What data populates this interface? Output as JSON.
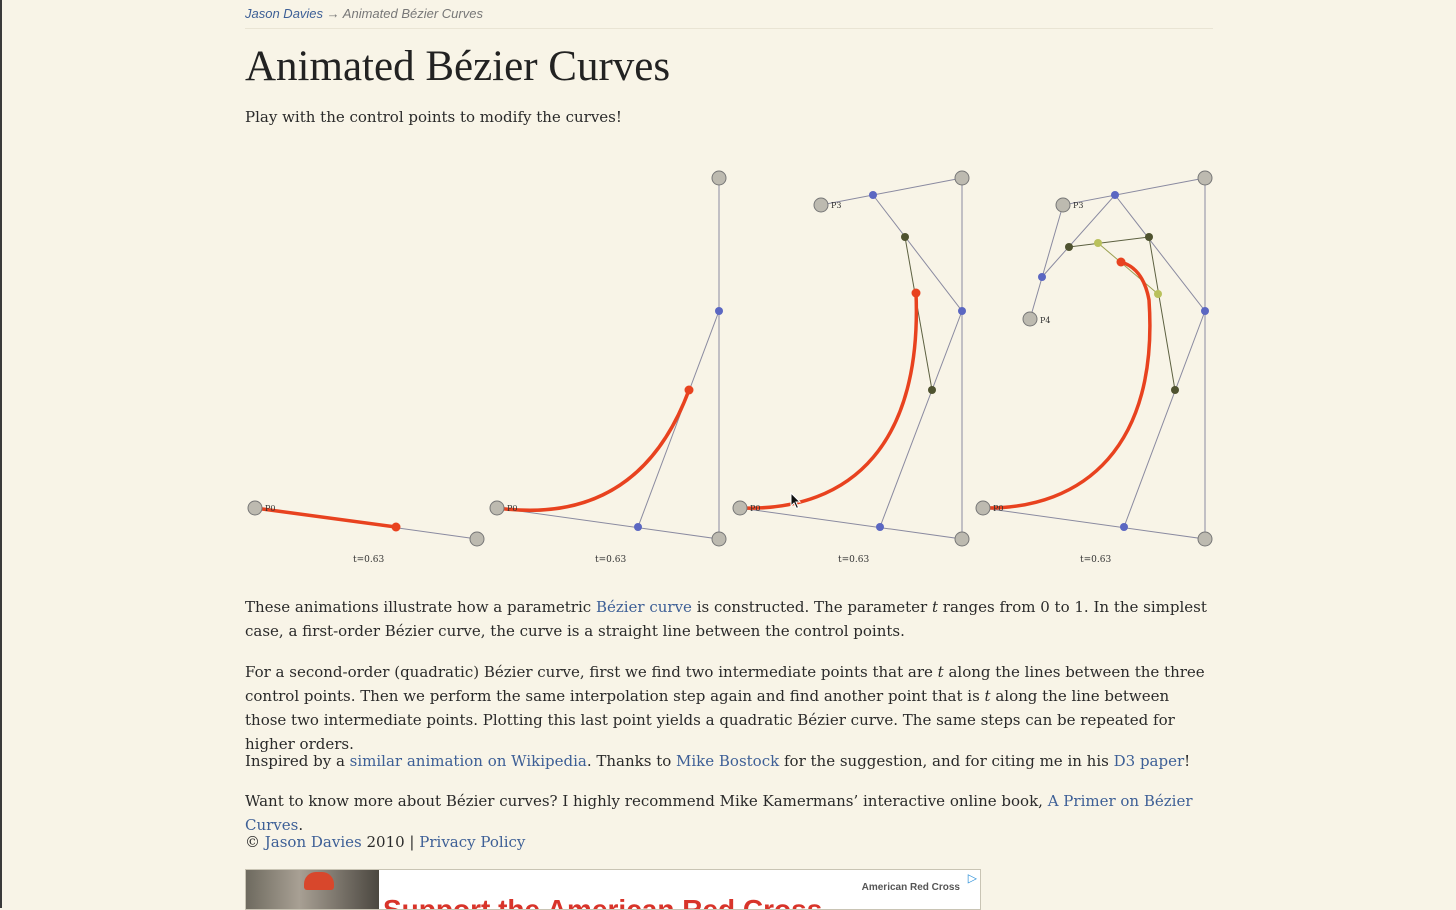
{
  "breadcrumb": {
    "home": "Jason Davies",
    "separator": " → ",
    "current": "Animated Bézier Curves"
  },
  "title": "Animated Bézier Curves",
  "subtitle": "Play with the control points to modify the curves!",
  "figures": {
    "t_label": "t=0.63",
    "point_labels": {
      "p0": "P0",
      "p3": "P3",
      "p4": "P4"
    },
    "colors": {
      "curve": "#e8421f",
      "control": "#bdbab0",
      "level1": "#5b67c2",
      "level2": "#4f5330",
      "level3": "#b9c15c",
      "line": "#8a8aa0"
    }
  },
  "paragraphs": {
    "p1": {
      "a": "These animations illustrate how a parametric ",
      "link": "Bézier curve",
      "b": " is constructed. The parameter ",
      "t": "t",
      "c": " ranges from 0 to 1. In the simplest case, a first-order Bézier curve, the curve is a straight line between the control points."
    },
    "p2": {
      "a": "For a second-order (quadratic) Bézier curve, first we find two intermediate points that are ",
      "t1": "t",
      "b": " along the lines between the three control points. Then we perform the same interpolation step again and find another point that is ",
      "t2": "t",
      "c": " along the line between those two intermediate points. Plotting this last point yields a quadratic Bézier curve. The same steps can be repeated for higher orders."
    },
    "p3": {
      "a": "Inspired by a ",
      "link1": "similar animation on Wikipedia",
      "b": ". Thanks to ",
      "link2": "Mike Bostock",
      "c": " for the suggestion, and for citing me in his ",
      "link3": "D3 paper",
      "d": "!"
    },
    "p4": {
      "a": "Want to know more about Bézier curves? I highly recommend Mike Kamermans’ interactive online book, ",
      "link": "A Primer on Bézier Curves",
      "b": "."
    },
    "footer": {
      "copy": "© ",
      "author": "Jason Davies",
      "year": " 2010 | ",
      "privacy": "Privacy Policy"
    }
  },
  "ad": {
    "brand": "American Red Cross",
    "headline": "Support the American Red Cross",
    "choice_icon": "adchoices-icon"
  }
}
